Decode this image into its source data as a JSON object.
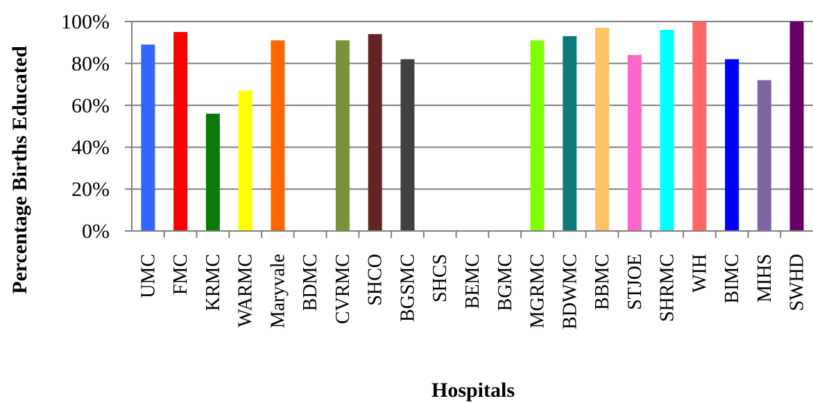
{
  "chart_data": {
    "type": "bar",
    "title": "",
    "xlabel": "Hospitals",
    "ylabel": "Percentage Births Educated",
    "ylim": [
      0,
      100
    ],
    "yticks": [
      0,
      20,
      40,
      60,
      80,
      100
    ],
    "ytick_labels": [
      "0%",
      "20%",
      "40%",
      "60%",
      "80%",
      "100%"
    ],
    "grid": true,
    "categories": [
      "UMC",
      "FMC",
      "KRMC",
      "WARMC",
      "Maryvale",
      "BDMC",
      "CVRMC",
      "SHCO",
      "BGSMC",
      "SHCS",
      "BEMC",
      "BGMC",
      "MGRMC",
      "BDWMC",
      "BBMC",
      "STJOE",
      "SHRMC",
      "WIH",
      "BIMC",
      "MIHS",
      "SWHD"
    ],
    "values": [
      89,
      95,
      56,
      67,
      91,
      0,
      91,
      94,
      82,
      0,
      0,
      0,
      91,
      93,
      97,
      84,
      96,
      100,
      82,
      72,
      100
    ],
    "colors": [
      "#3366ff",
      "#ff0000",
      "#0a7a0a",
      "#ffff00",
      "#ff6600",
      "#cccccc",
      "#77933c",
      "#632523",
      "#404040",
      "#cccccc",
      "#cccccc",
      "#cccccc",
      "#7fff00",
      "#0b7a7a",
      "#ffc266",
      "#ff66cc",
      "#00ffff",
      "#ff6666",
      "#0000ff",
      "#8064a2",
      "#660066"
    ]
  }
}
